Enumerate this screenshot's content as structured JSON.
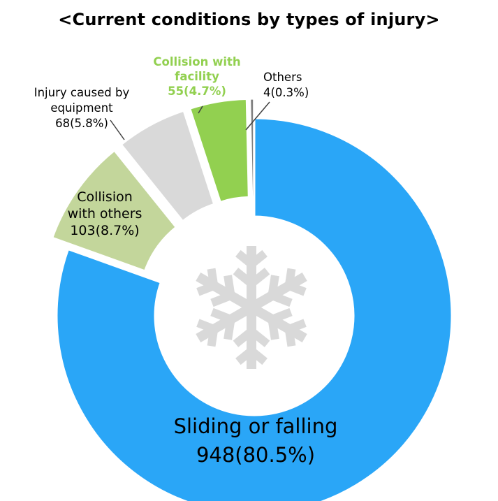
{
  "chart_data": {
    "type": "pie",
    "title": "<Current conditions by types of injury>",
    "slices": [
      {
        "key": "sliding",
        "label_lines": [
          "Sliding or falling"
        ],
        "value_text": "948(80.5%)",
        "value": 948,
        "percent": 80.5,
        "color": "#2aa6f7",
        "exploded": false
      },
      {
        "key": "others-collision",
        "label_lines": [
          "Collision",
          "with others"
        ],
        "value_text": "103(8.7%)",
        "value": 103,
        "percent": 8.7,
        "color": "#c3d69b",
        "exploded": true
      },
      {
        "key": "equipment",
        "label_lines": [
          "Injury caused by",
          "equipment"
        ],
        "value_text": "68(5.8%)",
        "value": 68,
        "percent": 5.8,
        "color": "#d9d9d9",
        "exploded": true
      },
      {
        "key": "facility",
        "label_lines": [
          "Collision with",
          "facility"
        ],
        "value_text": "55(4.7%)",
        "value": 55,
        "percent": 4.7,
        "color": "#92d050",
        "exploded": true
      },
      {
        "key": "others",
        "label_lines": [
          "Others"
        ],
        "value_text": "4(0.3%)",
        "value": 4,
        "percent": 0.3,
        "color": "#808080",
        "exploded": true
      }
    ],
    "center_icon": "snowflake-icon",
    "legend": "none"
  }
}
